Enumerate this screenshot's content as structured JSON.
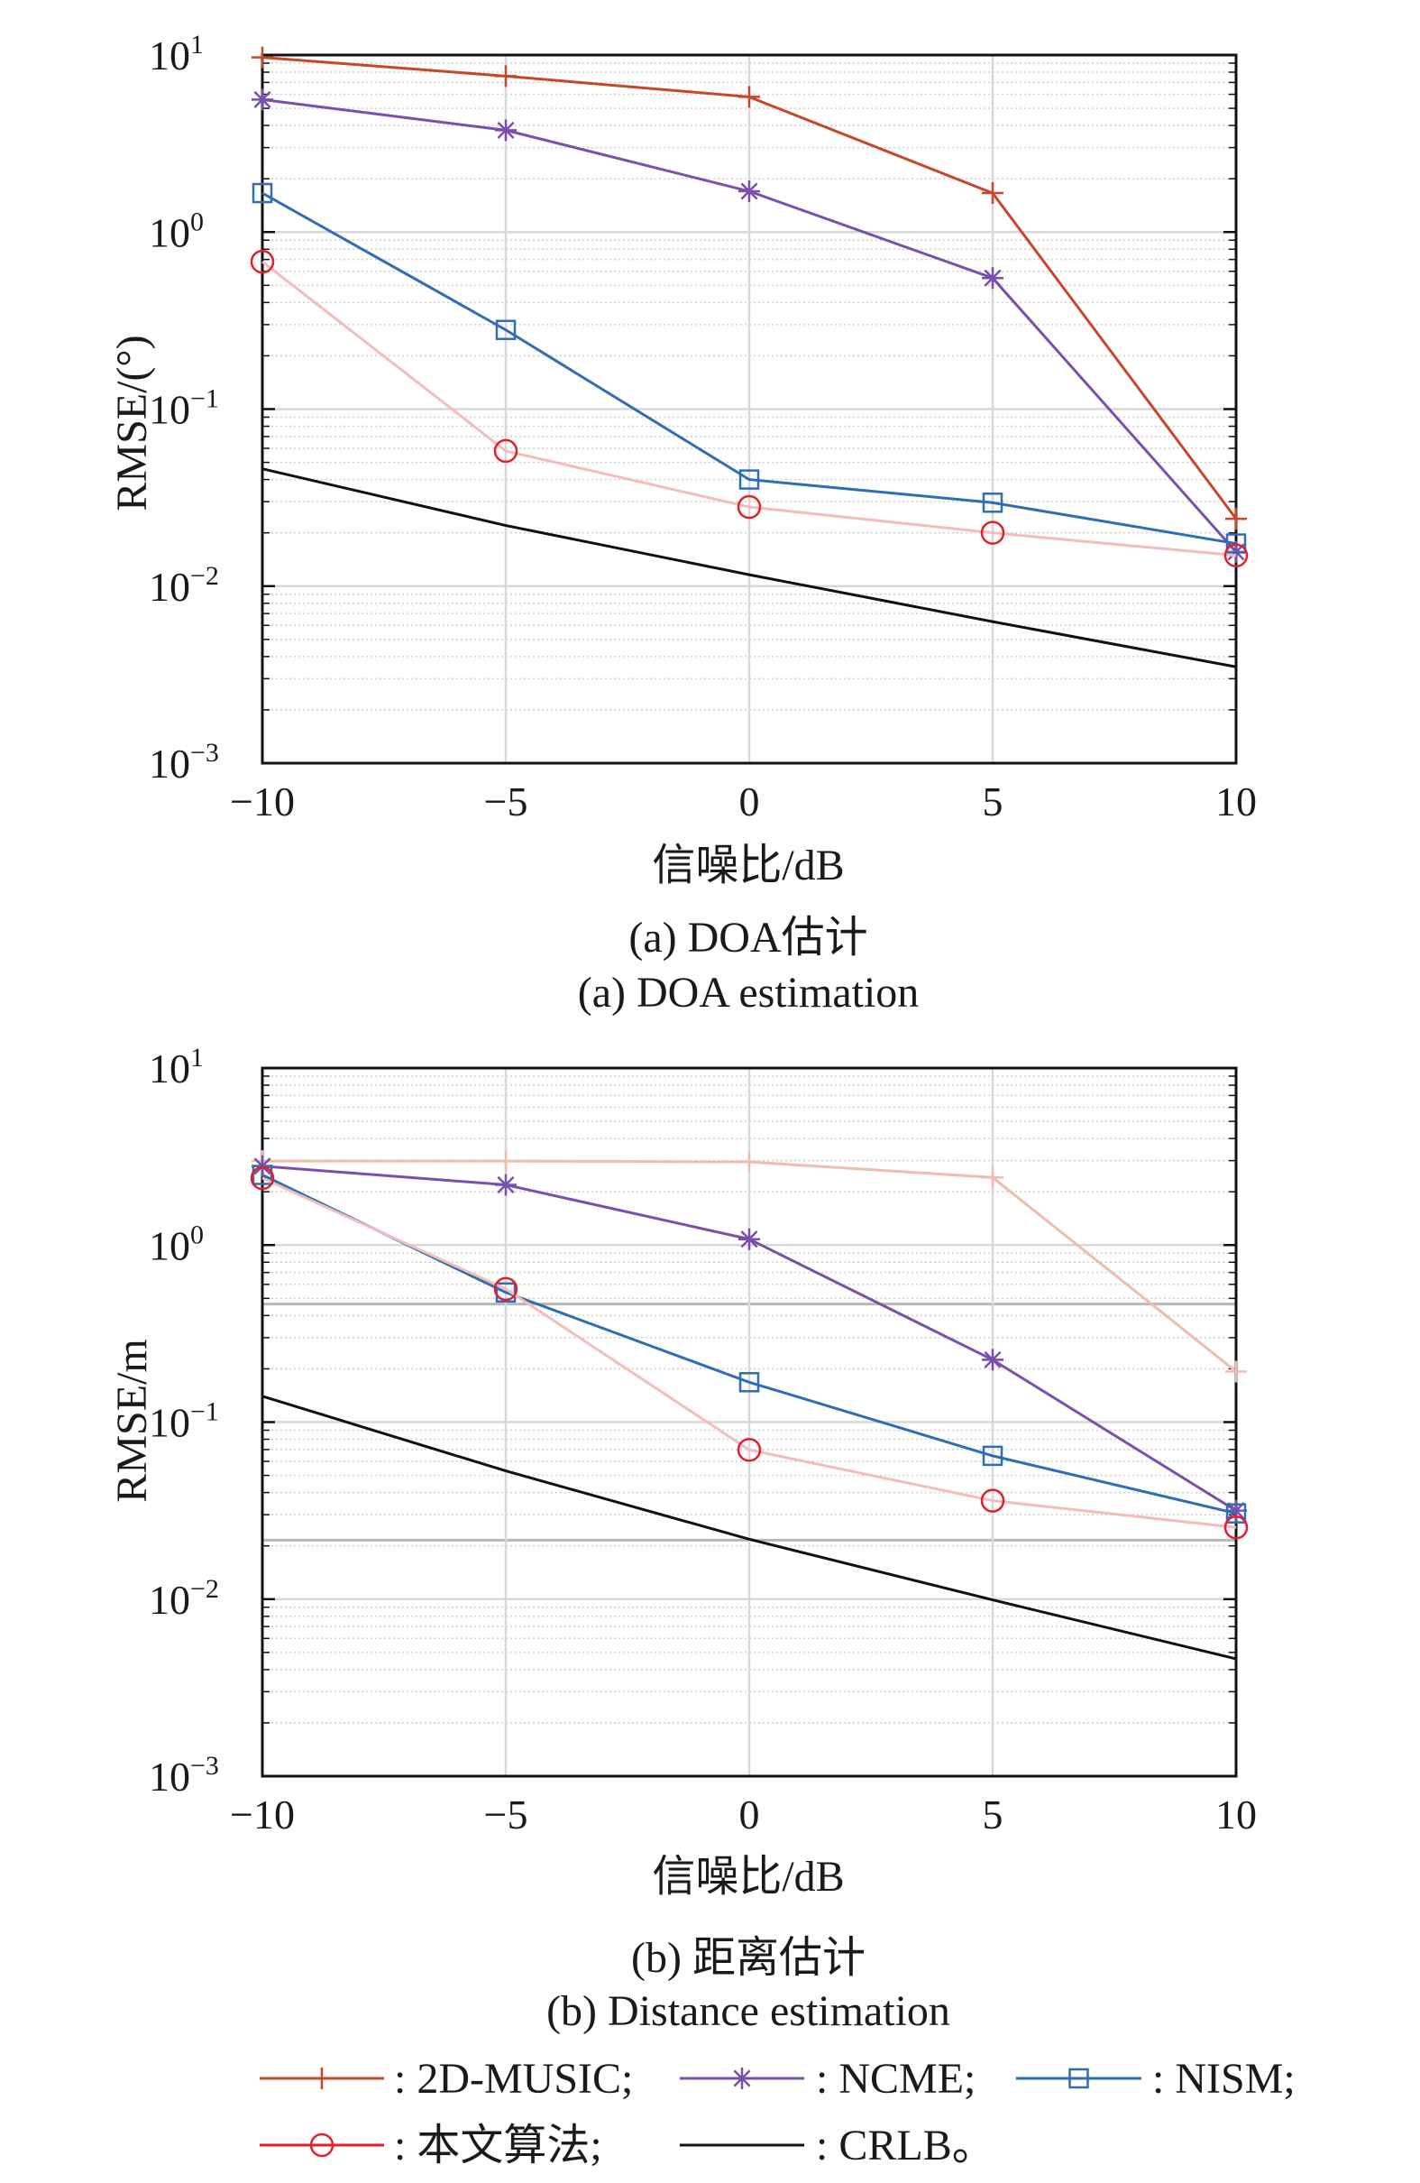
{
  "chart_data": [
    {
      "type": "line",
      "title": "(a) DOA估计",
      "subtitle": "(a) DOA estimation",
      "xlabel": "信噪比/dB",
      "ylabel": "RMSE/(°)",
      "yscale": "log",
      "xlim": [
        -10,
        10
      ],
      "ylim": [
        0.001,
        10
      ],
      "grid": true,
      "x": [
        -10,
        -5,
        0,
        5,
        10
      ],
      "xtick_labels": [
        "−10",
        "−5",
        "0",
        "5",
        "10"
      ],
      "ytick_base": "10",
      "ytick_exponents": [
        "1",
        "0",
        "−1",
        "−2",
        "−3"
      ],
      "series": [
        {
          "name": "2D-MUSIC",
          "values": [
            9.7,
            7.6,
            5.8,
            1.66,
            0.024
          ]
        },
        {
          "name": "NCME",
          "values": [
            5.6,
            3.76,
            1.7,
            0.55,
            0.0156
          ]
        },
        {
          "name": "NISM",
          "values": [
            1.66,
            0.28,
            0.04,
            0.0296,
            0.0174
          ]
        },
        {
          "name": "本文算法",
          "values": [
            0.68,
            0.058,
            0.028,
            0.02,
            0.0149
          ]
        },
        {
          "name": "CRLB",
          "values": [
            0.046,
            0.022,
            0.0116,
            0.0063,
            0.0035
          ]
        }
      ]
    },
    {
      "type": "line",
      "title": "(b) 距离估计",
      "subtitle": "(b) Distance estimation",
      "xlabel": "信噪比/dB",
      "ylabel": "RMSE/m",
      "yscale": "log",
      "xlim": [
        -10,
        10
      ],
      "ylim": [
        0.001,
        10
      ],
      "grid": true,
      "x": [
        -10,
        -5,
        0,
        5,
        10
      ],
      "xtick_labels": [
        "−10",
        "−5",
        "0",
        "5",
        "10"
      ],
      "ytick_base": "10",
      "ytick_exponents": [
        "1",
        "0",
        "−1",
        "−2",
        "−3"
      ],
      "series": [
        {
          "name": "2D-MUSIC",
          "values": [
            2.98,
            2.98,
            2.95,
            2.41,
            0.193
          ]
        },
        {
          "name": "NCME",
          "values": [
            2.79,
            2.19,
            1.08,
            0.225,
            0.0316
          ]
        },
        {
          "name": "NISM",
          "values": [
            2.49,
            0.54,
            0.168,
            0.0645,
            0.0305
          ]
        },
        {
          "name": "本文算法",
          "values": [
            2.39,
            0.565,
            0.0697,
            0.036,
            0.0254
          ]
        },
        {
          "name": "CRLB",
          "values": [
            0.14,
            0.053,
            0.0218,
            0.0099,
            0.0046
          ]
        }
      ]
    }
  ],
  "legend": {
    "placement": "bottom",
    "entries": [
      {
        "label": ": 2D-MUSIC;",
        "marker": "plus",
        "color": "#c8472a"
      },
      {
        "label": ": NCME;",
        "marker": "asterisk",
        "color": "#7b4fae"
      },
      {
        "label": ": NISM;",
        "marker": "square",
        "color": "#2f6eb5"
      },
      {
        "label": ": 本文算法;",
        "marker": "circle",
        "color": "#e0202a"
      },
      {
        "label": ": CRLB。",
        "marker": "none",
        "color": "#111111"
      }
    ]
  },
  "styles": [
    {
      "line": "#c8472a",
      "marker": "#c8472a",
      "shape": "plus"
    },
    {
      "line": "#7b4fae",
      "marker": "#7b4fae",
      "shape": "asterisk"
    },
    {
      "line": "#2f6eb5",
      "marker": "#2f6eb5",
      "shape": "square"
    },
    {
      "line": "#f6bcbc",
      "marker": "#e0202a",
      "shape": "circle"
    },
    {
      "line": "#111111",
      "marker": "none",
      "shape": "none"
    }
  ],
  "faded_music_color": "#efbcae"
}
